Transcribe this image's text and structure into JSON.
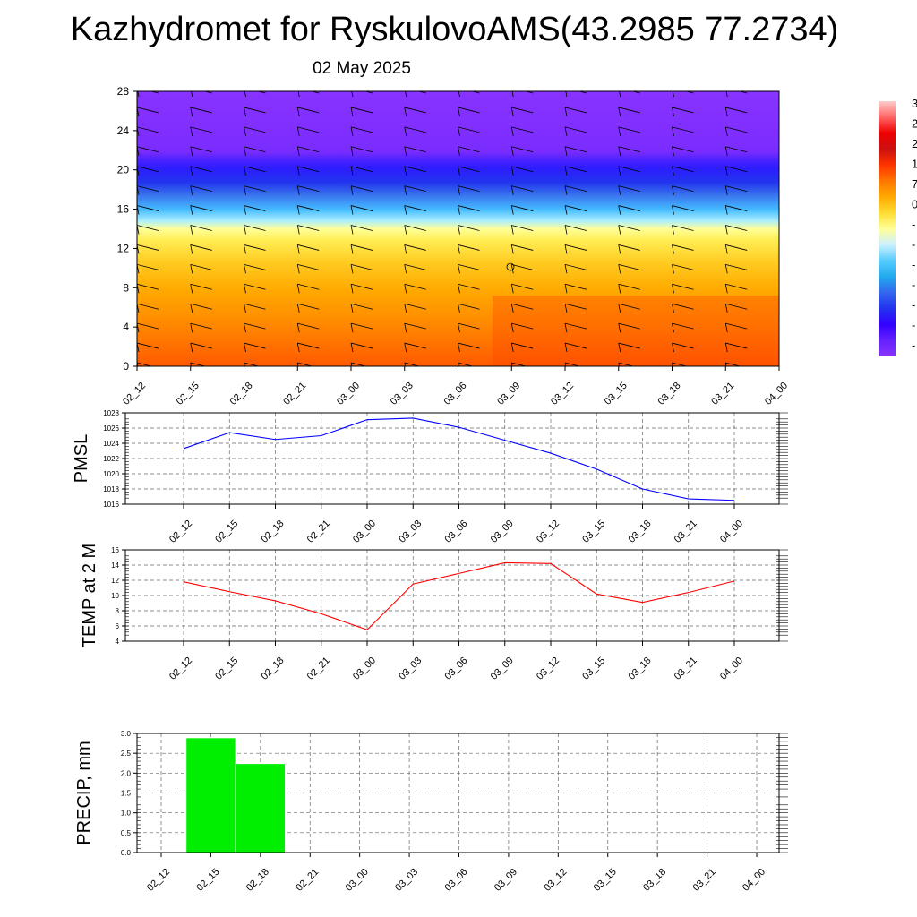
{
  "header": {
    "title": "Kazhydromet for RyskulovoAMS(43.2985 77.2734)",
    "date": "02 May 2025"
  },
  "time_labels": [
    "02_12",
    "02_15",
    "02_18",
    "02_21",
    "03_00",
    "03_03",
    "03_06",
    "03_09",
    "03_12",
    "03_15",
    "03_18",
    "03_21",
    "04_00"
  ],
  "colors": {
    "pmsl_line": "#0000ff",
    "temp_line": "#ff0000",
    "precip_bar": "#00ee00",
    "colorbar": [
      "#ffcccc",
      "#ff6666",
      "#ee0000",
      "#cc1010",
      "#ff3300",
      "#ff7700",
      "#ffaa00",
      "#ffdd33",
      "#ffff99",
      "#ccf0ff",
      "#55ccff",
      "#22aaee",
      "#3366ee",
      "#2233ee",
      "#3300ff",
      "#6622ff",
      "#8833ff"
    ]
  },
  "colorbar_visible_labels": [
    "3",
    "2",
    "2",
    "1",
    "7",
    "0",
    "-",
    "-",
    "-",
    "-",
    "-",
    "-",
    "-"
  ],
  "chart_data": [
    {
      "type": "heatmap",
      "name": "cross-section",
      "x": [
        "02_12",
        "02_15",
        "02_18",
        "02_21",
        "03_00",
        "03_03",
        "03_06",
        "03_09",
        "03_12",
        "03_15",
        "03_18",
        "03_21",
        "04_00"
      ],
      "y_ticks": [
        0,
        4,
        8,
        12,
        16,
        20,
        24,
        28
      ],
      "ylim": [
        0,
        28
      ],
      "annotation": "wind barbs overlay"
    },
    {
      "type": "line",
      "ylabel": "PMSL",
      "x": [
        "02_12",
        "02_15",
        "02_18",
        "02_21",
        "03_00",
        "03_03",
        "03_06",
        "03_09",
        "03_12",
        "03_15",
        "03_18",
        "03_21",
        "04_00"
      ],
      "values": [
        1023.3,
        1025.4,
        1024.5,
        1025.0,
        1027.1,
        1027.3,
        1026.1,
        1024.4,
        1022.7,
        1020.6,
        1018.0,
        1016.7,
        1016.5
      ],
      "ylim": [
        1016,
        1028
      ],
      "y_ticks": [
        1016,
        1018,
        1020,
        1022,
        1024,
        1026,
        1028
      ],
      "grid": true
    },
    {
      "type": "line",
      "ylabel": "TEMP at 2 M",
      "x": [
        "02_12",
        "02_15",
        "02_18",
        "02_21",
        "03_00",
        "03_03",
        "03_06",
        "03_09",
        "03_12",
        "03_15",
        "03_18",
        "03_21",
        "04_00"
      ],
      "values": [
        11.8,
        10.5,
        9.3,
        7.6,
        5.5,
        11.5,
        12.9,
        14.3,
        14.2,
        10.2,
        9.1,
        10.4,
        11.9
      ],
      "ylim": [
        4,
        16
      ],
      "y_ticks": [
        4,
        6,
        8,
        10,
        12,
        14,
        16
      ],
      "grid": true
    },
    {
      "type": "bar",
      "ylabel": "PRECIP, mm",
      "categories": [
        "02_12",
        "02_15",
        "02_18",
        "02_21",
        "03_00",
        "03_03",
        "03_06",
        "03_09",
        "03_12",
        "03_15",
        "03_18",
        "03_21",
        "04_00"
      ],
      "values": [
        0,
        2.88,
        2.23,
        0,
        0,
        0,
        0,
        0,
        0,
        0,
        0,
        0,
        0
      ],
      "ylim": [
        0,
        3.0
      ],
      "y_ticks": [
        "0.0",
        "0.5",
        "1.0",
        "1.5",
        "2.0",
        "2.5",
        "3.0"
      ],
      "grid": true
    }
  ]
}
